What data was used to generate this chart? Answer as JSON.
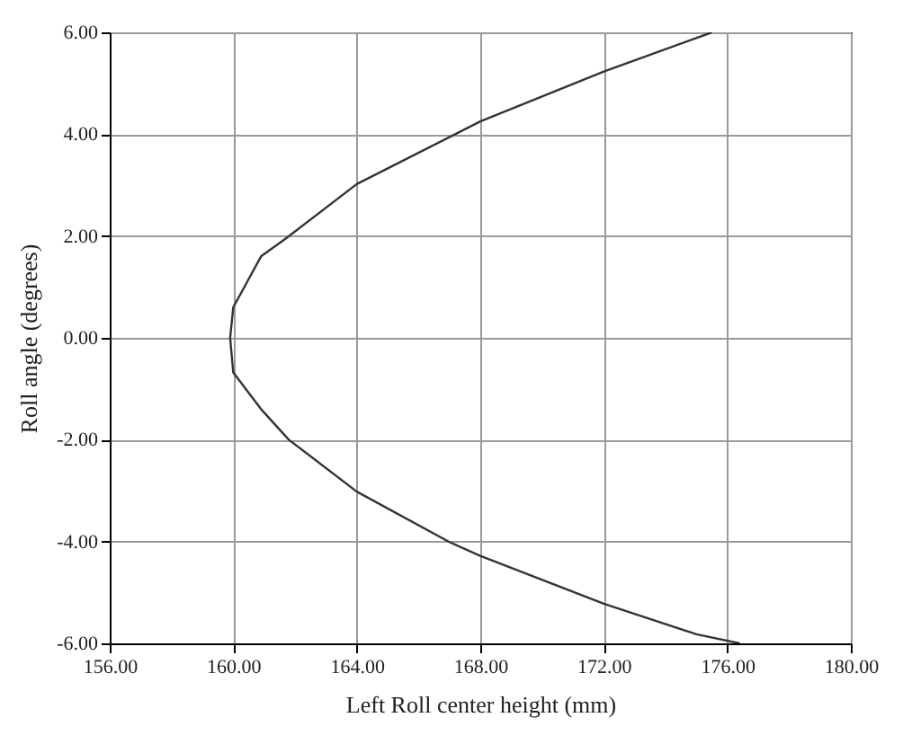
{
  "chart_data": {
    "type": "line",
    "xlabel": "Left Roll center height (mm)",
    "ylabel": "Roll angle (degrees)",
    "x": [
      176.4,
      175,
      172,
      168,
      167,
      164,
      161.8,
      160.9,
      160,
      159.9,
      160,
      160.2,
      160.9,
      161.7,
      164,
      168,
      172,
      175.5
    ],
    "series": [
      {
        "color": "#333333",
        "values": [
          -6,
          -5.82,
          -5.22,
          -4.28,
          -4.01,
          -3.02,
          -2,
          -1.4,
          -0.68,
          0,
          0.6,
          0.82,
          1.6,
          1.95,
          3.02,
          4.25,
          5.23,
          6
        ]
      }
    ],
    "xlim": [
      156,
      180
    ],
    "ylim": [
      -6,
      6
    ],
    "xticks": [
      {
        "value": 156,
        "label": "156.00"
      },
      {
        "value": 160,
        "label": "160.00"
      },
      {
        "value": 164,
        "label": "164.00"
      },
      {
        "value": 168,
        "label": "168.00"
      },
      {
        "value": 172,
        "label": "172.00"
      },
      {
        "value": 176,
        "label": "176.00"
      },
      {
        "value": 180,
        "label": "180.00"
      }
    ],
    "yticks": [
      {
        "value": -6,
        "label": "-6.00"
      },
      {
        "value": -4,
        "label": "-4.00"
      },
      {
        "value": -2,
        "label": "-2.00"
      },
      {
        "value": 0,
        "label": "0.00"
      },
      {
        "value": 2,
        "label": "2.00"
      },
      {
        "value": 4,
        "label": "4.00"
      },
      {
        "value": 6,
        "label": "6.00"
      }
    ],
    "grid": true
  }
}
